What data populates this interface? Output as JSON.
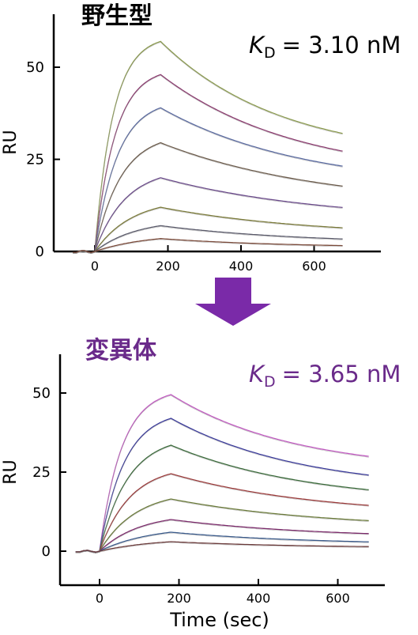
{
  "chart_data": [
    {
      "type": "line",
      "title": "野生型",
      "title_color": "#000000",
      "kd_label": {
        "symbol": "K",
        "subscript": "D",
        "value": "= 3.10 nM",
        "color": "#000000"
      },
      "ylabel": "RU",
      "xlabel": "",
      "xlim": [
        -75,
        700
      ],
      "ylim": [
        -22,
        67
      ],
      "yticks": [
        0,
        25,
        50
      ],
      "xticks": [
        0,
        200,
        400,
        600
      ],
      "grid": false,
      "injection_end": 180,
      "series": [
        {
          "color": "#8a9a4e",
          "values": {
            "rmax": 57.0,
            "k": 0.02,
            "kd": 0.0019,
            "plateau": 25
          }
        },
        {
          "color": "#8a3a6e",
          "values": {
            "rmax": 48.0,
            "k": 0.018,
            "kd": 0.0017,
            "plateau": 20
          }
        },
        {
          "color": "#5a6aa0",
          "values": {
            "rmax": 39.0,
            "k": 0.016,
            "kd": 0.0016,
            "plateau": 17
          }
        },
        {
          "color": "#6a5a4a",
          "values": {
            "rmax": 29.5,
            "k": 0.014,
            "kd": 0.0014,
            "plateau": 12
          }
        },
        {
          "color": "#6a4a8a",
          "values": {
            "rmax": 20.0,
            "k": 0.012,
            "kd": 0.0014,
            "plateau": 8
          }
        },
        {
          "color": "#7a7a3a",
          "values": {
            "rmax": 12.0,
            "k": 0.01,
            "kd": 0.0015,
            "plateau": 4
          }
        },
        {
          "color": "#5a5a6a",
          "values": {
            "rmax": 7.0,
            "k": 0.009,
            "kd": 0.0016,
            "plateau": 2
          }
        },
        {
          "color": "#7a4a3a",
          "values": {
            "rmax": 3.5,
            "k": 0.007,
            "kd": 0.0018,
            "plateau": 1
          }
        }
      ]
    },
    {
      "type": "line",
      "title": "変異体",
      "title_color": "#6a2a8a",
      "kd_label": {
        "symbol": "K",
        "subscript": "D",
        "value": "= 3.65 nM",
        "color": "#6a2a8a"
      },
      "ylabel": "RU",
      "xlabel": "Time (sec)",
      "xlim": [
        -75,
        700
      ],
      "ylim": [
        -12,
        62
      ],
      "yticks": [
        0,
        25,
        50
      ],
      "xticks": [
        0,
        200,
        400,
        600
      ],
      "grid": false,
      "injection_end": 180,
      "series": [
        {
          "color": "#c05ac0",
          "values": {
            "rmax": 49.5,
            "k": 0.018,
            "kd": 0.002,
            "plateau": 25
          }
        },
        {
          "color": "#3a3a9a",
          "values": {
            "rmax": 42.0,
            "k": 0.016,
            "kd": 0.0019,
            "plateau": 19
          }
        },
        {
          "color": "#3a6a3a",
          "values": {
            "rmax": 33.5,
            "k": 0.014,
            "kd": 0.0018,
            "plateau": 15
          }
        },
        {
          "color": "#9a3a3a",
          "values": {
            "rmax": 24.5,
            "k": 0.013,
            "kd": 0.0017,
            "plateau": 11
          }
        },
        {
          "color": "#6a7a3a",
          "values": {
            "rmax": 16.5,
            "k": 0.011,
            "kd": 0.0016,
            "plateau": 7
          }
        },
        {
          "color": "#7a2a6a",
          "values": {
            "rmax": 10.0,
            "k": 0.01,
            "kd": 0.0017,
            "plateau": 4
          }
        },
        {
          "color": "#3a5a8a",
          "values": {
            "rmax": 6.0,
            "k": 0.008,
            "kd": 0.0018,
            "plateau": 2
          }
        },
        {
          "color": "#6a3a3a",
          "values": {
            "rmax": 3.0,
            "k": 0.007,
            "kd": 0.0019,
            "plateau": 1
          }
        }
      ]
    }
  ],
  "arrow": {
    "color": "#7a2aa8",
    "direction": "down"
  }
}
